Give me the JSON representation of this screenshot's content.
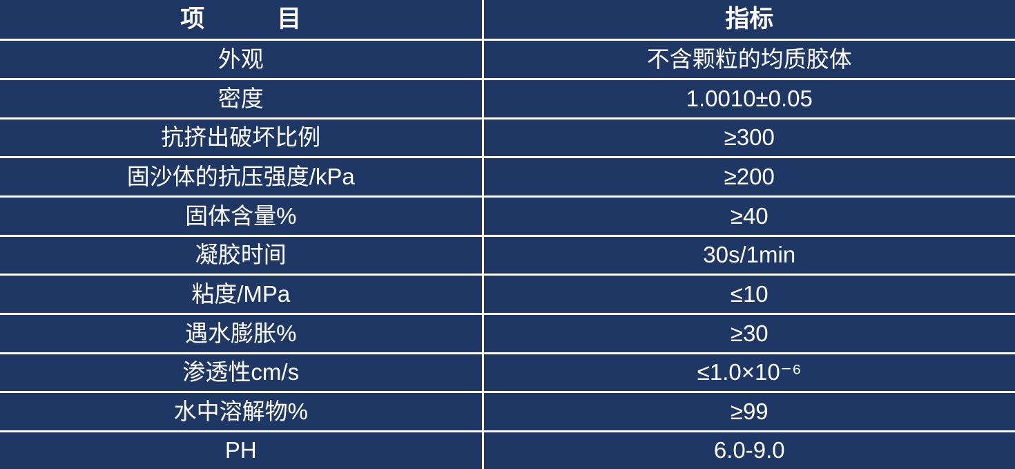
{
  "table": {
    "title": "product-specification-table",
    "colors": {
      "background": "#1F3765",
      "grid_border": "#FFFFFF",
      "text": "#FFFFFF"
    },
    "columns": [
      {
        "label": "项　　　目"
      },
      {
        "label": "指标"
      }
    ],
    "rows": [
      {
        "item": "外观",
        "value": "不含颗粒的均质胶体"
      },
      {
        "item": "密度",
        "value": "1.0010±0.05"
      },
      {
        "item": "抗挤出破坏比例",
        "value": "≥300"
      },
      {
        "item": "固沙体的抗压强度/kPa",
        "value": "≥200"
      },
      {
        "item": "固体含量%",
        "value": "≥40"
      },
      {
        "item": "凝胶时间",
        "value": "30s/1min"
      },
      {
        "item": "粘度/MPa",
        "value": "≤10"
      },
      {
        "item": "遇水膨胀%",
        "value": "≥30"
      },
      {
        "item": "渗透性cm/s",
        "value": "≤1.0×10⁻⁶"
      },
      {
        "item": "水中溶解物%",
        "value": "≥99"
      },
      {
        "item": "PH",
        "value": "6.0-9.0"
      }
    ]
  }
}
